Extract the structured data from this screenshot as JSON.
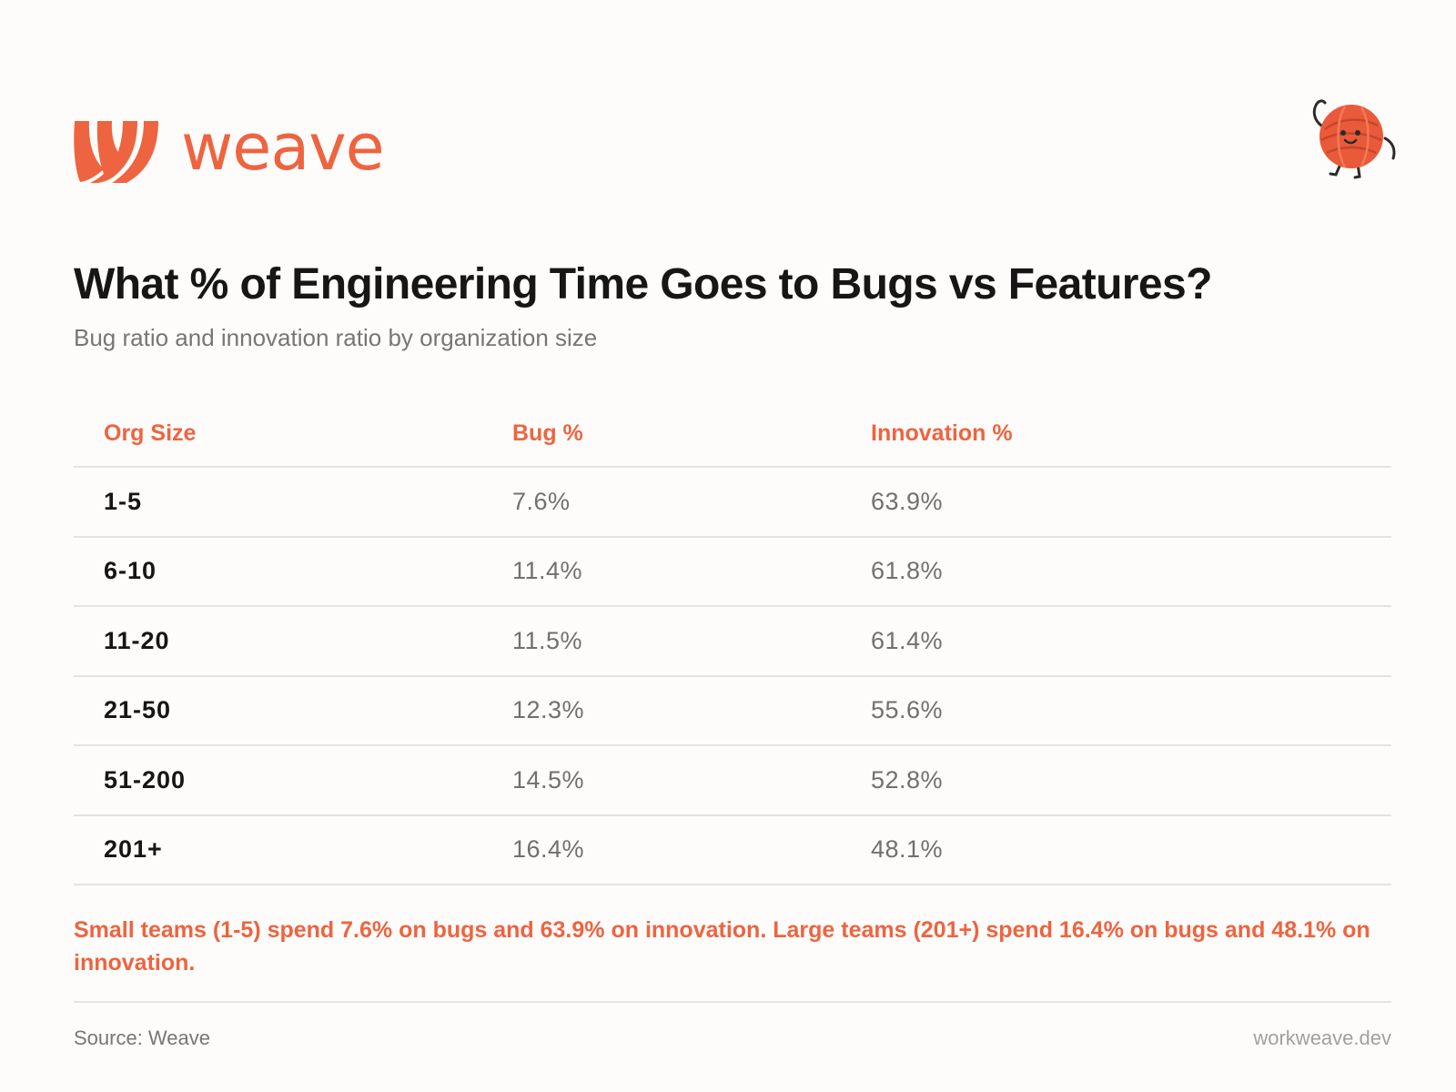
{
  "brand": {
    "name": "weave",
    "accent_color": "#ee6440",
    "logo_icon": "weave-logo-icon",
    "mascot_icon": "yarn-ball-mascot-icon"
  },
  "chart_data": {
    "type": "table",
    "title": "What % of Engineering Time Goes to Bugs vs Features?",
    "subtitle": "Bug ratio and innovation ratio by organization size",
    "columns": [
      "Org Size",
      "Bug %",
      "Innovation %"
    ],
    "rows": [
      {
        "org_size": "1-5",
        "bug": "7.6%",
        "innovation": "63.9%"
      },
      {
        "org_size": "6-10",
        "bug": "11.4%",
        "innovation": "61.8%"
      },
      {
        "org_size": "11-20",
        "bug": "11.5%",
        "innovation": "61.4%"
      },
      {
        "org_size": "21-50",
        "bug": "12.3%",
        "innovation": "55.6%"
      },
      {
        "org_size": "51-200",
        "bug": "14.5%",
        "innovation": "52.8%"
      },
      {
        "org_size": "201+",
        "bug": "16.4%",
        "innovation": "48.1%"
      }
    ],
    "bug_values": [
      7.6,
      11.4,
      11.5,
      12.3,
      14.5,
      16.4
    ],
    "innovation_values": [
      63.9,
      61.8,
      61.4,
      55.6,
      52.8,
      48.1
    ]
  },
  "insight": "Small teams (1-5) spend 7.6% on bugs and 63.9% on innovation. Large teams (201+) spend 16.4% on bugs and 48.1% on innovation.",
  "footer": {
    "source": "Source: Weave",
    "site": "workweave.dev"
  }
}
